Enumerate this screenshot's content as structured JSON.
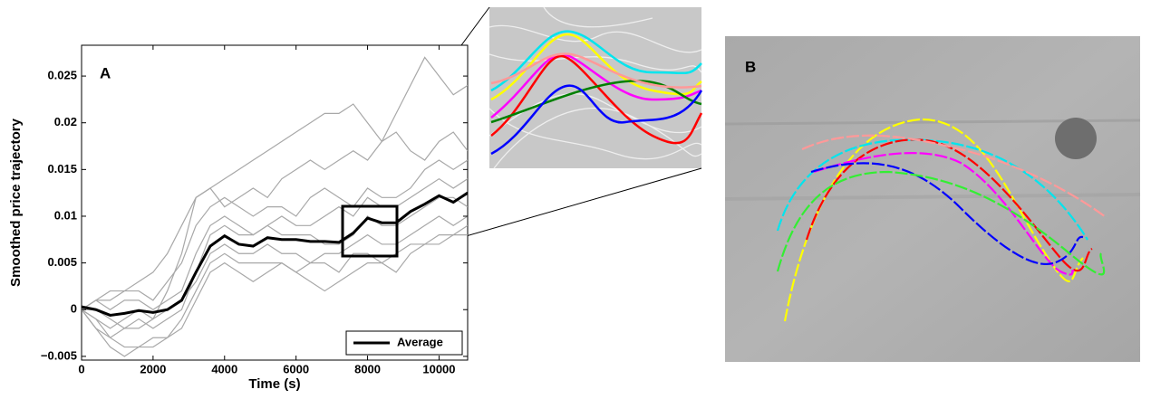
{
  "chart_data": {
    "type": "line",
    "annotation": "A",
    "xlabel": "Time (s)",
    "ylabel": "Smoothed price trajectory",
    "x": [
      0,
      400,
      800,
      1200,
      1600,
      2000,
      2400,
      2800,
      3200,
      3600,
      4000,
      4400,
      4800,
      5200,
      5600,
      6000,
      6400,
      6800,
      7200,
      7600,
      8000,
      8400,
      8800,
      9200,
      9600,
      10000,
      10400,
      10800
    ],
    "xlim": [
      0,
      10800
    ],
    "xticks": [
      0,
      2000,
      4000,
      6000,
      8000,
      10000
    ],
    "ylim": [
      -0.0054,
      0.0283
    ],
    "yticks": [
      {
        "value": -0.005,
        "label": "−0.005"
      },
      0,
      0.005,
      0.01,
      0.015,
      0.02,
      0.025
    ],
    "legend": "lower right",
    "series": [
      {
        "color": "#a8a8a8",
        "values": [
          0,
          0.001,
          0.002,
          0.002,
          0.003,
          0.004,
          0.006,
          0.009,
          0.012,
          0.013,
          0.014,
          0.015,
          0.016,
          0.017,
          0.018,
          0.019,
          0.02,
          0.021,
          0.021,
          0.022,
          0.02,
          0.018,
          0.021,
          0.024,
          0.027,
          0.025,
          0.023,
          0.024
        ]
      },
      {
        "color": "#a8a8a8",
        "values": [
          0,
          -0.002,
          -0.003,
          -0.002,
          -0.002,
          -0.001,
          0.002,
          0.006,
          0.012,
          0.013,
          0.011,
          0.012,
          0.013,
          0.012,
          0.014,
          0.015,
          0.016,
          0.015,
          0.016,
          0.017,
          0.016,
          0.018,
          0.019,
          0.017,
          0.016,
          0.018,
          0.019,
          0.017
        ]
      },
      {
        "color": "#a8a8a8",
        "values": [
          0,
          -0.001,
          -0.003,
          -0.004,
          -0.004,
          -0.004,
          -0.003,
          -0.002,
          0.001,
          0.004,
          0.005,
          0.004,
          0.003,
          0.004,
          0.005,
          0.004,
          0.003,
          0.002,
          0.003,
          0.004,
          0.005,
          0.005,
          0.004,
          0.006,
          0.007,
          0.007,
          0.008,
          0.008
        ]
      },
      {
        "color": "#a8a8a8",
        "values": [
          0,
          0.001,
          0,
          0.001,
          0.001,
          0,
          0.001,
          0.002,
          0.006,
          0.009,
          0.01,
          0.009,
          0.008,
          0.009,
          0.01,
          0.009,
          0.009,
          0.01,
          0.011,
          0.01,
          0.012,
          0.011,
          0.011,
          0.012,
          0.013,
          0.014,
          0.013,
          0.014
        ]
      },
      {
        "color": "#a8a8a8",
        "values": [
          0,
          -0.001,
          -0.002,
          -0.001,
          0,
          -0.001,
          0,
          0.001,
          0.003,
          0.006,
          0.007,
          0.006,
          0.006,
          0.007,
          0.006,
          0.006,
          0.005,
          0.006,
          0.006,
          0.007,
          0.008,
          0.007,
          0.007,
          0.008,
          0.009,
          0.01,
          0.009,
          0.01
        ]
      },
      {
        "color": "#a8a8a8",
        "values": [
          0,
          0,
          -0.001,
          -0.002,
          -0.001,
          -0.002,
          -0.001,
          0,
          0.004,
          0.008,
          0.009,
          0.008,
          0.008,
          0.009,
          0.008,
          0.008,
          0.008,
          0.007,
          0.007,
          0.008,
          0.01,
          0.009,
          0.009,
          0.01,
          0.011,
          0.012,
          0.012,
          0.011
        ]
      },
      {
        "color": "#a8a8a8",
        "values": [
          0,
          -0.002,
          -0.004,
          -0.005,
          -0.004,
          -0.003,
          -0.003,
          -0.001,
          0.002,
          0.005,
          0.006,
          0.005,
          0.005,
          0.005,
          0.005,
          0.004,
          0.005,
          0.005,
          0.004,
          0.006,
          0.006,
          0.005,
          0.006,
          0.007,
          0.007,
          0.008,
          0.008,
          0.009
        ]
      },
      {
        "color": "#a8a8a8",
        "values": [
          0,
          0.001,
          0.001,
          0.002,
          0.002,
          0.001,
          0.003,
          0.005,
          0.009,
          0.011,
          0.012,
          0.011,
          0.01,
          0.011,
          0.011,
          0.01,
          0.012,
          0.013,
          0.012,
          0.011,
          0.013,
          0.012,
          0.012,
          0.013,
          0.015,
          0.016,
          0.015,
          0.016
        ]
      },
      {
        "name": "Average",
        "color": "#000000",
        "values": [
          0.0003,
          0,
          -0.0006,
          -0.0004,
          -0.0001,
          -0.0003,
          0,
          0.001,
          0.004,
          0.0068,
          0.0079,
          0.007,
          0.0068,
          0.0077,
          0.0075,
          0.0075,
          0.0073,
          0.0073,
          0.0072,
          0.0082,
          0.0098,
          0.0093,
          0.0093,
          0.0105,
          0.0113,
          0.0122,
          0.0115,
          0.0125
        ]
      }
    ]
  },
  "figure_b": {
    "label": "B"
  }
}
